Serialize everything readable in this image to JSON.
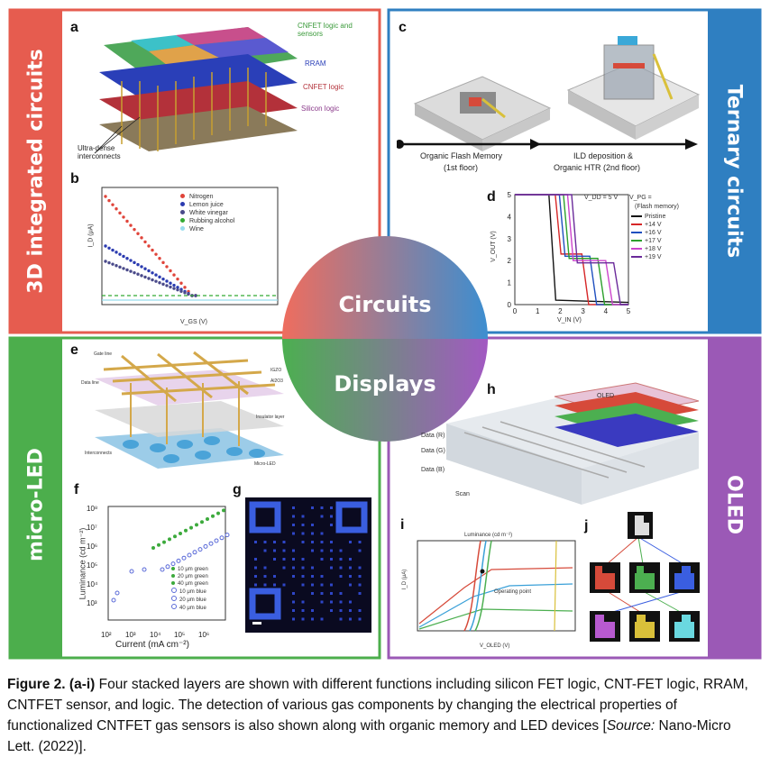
{
  "quadrants": {
    "top_left": {
      "band": "3D integrated circuits",
      "color": "#e65c4f"
    },
    "top_right": {
      "band": "Ternary circuits",
      "color": "#2f7fc1"
    },
    "bottom_left": {
      "band": "micro-LED",
      "color": "#4cae4c"
    },
    "bottom_right": {
      "band": "OLED",
      "color": "#9b59b6"
    }
  },
  "center": {
    "top_label": "Circuits",
    "bottom_label": "Displays"
  },
  "panel_a": {
    "letter": "a",
    "layer_labels": [
      "CNFET logic and sensors",
      "RRAM",
      "CNFET logic",
      "Silicon logic"
    ],
    "interconnect_label": "Ultra-dense interconnects"
  },
  "panel_b": {
    "letter": "b",
    "ylabel": "I_D (μA)",
    "xlabel": "V_GS (V)",
    "legend": [
      "Nitrogen",
      "Lemon juice",
      "White vinegar",
      "Rubbing alcohol",
      "Wine"
    ],
    "legend_colors": [
      "#e0443a",
      "#2b3bb0",
      "#4a4a8a",
      "#33aa33",
      "#99ddee"
    ]
  },
  "panel_c": {
    "letter": "c",
    "step1": "Organic Flash Memory",
    "step1b": "(1st floor)",
    "step2": "ILD deposition &",
    "step2b": "Organic HTR (2nd floor)"
  },
  "panel_d": {
    "letter": "d",
    "ylabel": "V_OUT (V)",
    "xlabel": "V_IN (V)",
    "annotation": "V_DD = 5 V",
    "legend_title": "V_PG =",
    "legend_sub": "(Flash memory)",
    "legend": [
      "Pristine",
      "+14 V",
      "+16 V",
      "+17 V",
      "+18 V",
      "+19 V"
    ],
    "legend_colors": [
      "#111111",
      "#d62728",
      "#1f4fbf",
      "#2ca02c",
      "#cc44cc",
      "#6a2a9a"
    ],
    "xticks": [
      "0",
      "1",
      "2",
      "3",
      "4",
      "5"
    ],
    "yticks": [
      "0",
      "1",
      "2",
      "3",
      "4",
      "5"
    ]
  },
  "panel_e": {
    "letter": "e",
    "labels": [
      "Gate line",
      "Data line",
      "Interconnects",
      "Micro-LED",
      "Insulator layer",
      "Al2O3",
      "IGZO"
    ]
  },
  "panel_f": {
    "letter": "f",
    "ylabel": "Luminance (cd m⁻²)",
    "xlabel": "Current (mA cm⁻²)",
    "legend": [
      "10 μm green",
      "20 μm green",
      "40 μm green",
      "10 μm blue",
      "20 μm blue",
      "40 μm blue"
    ],
    "yticks": [
      "10⁸",
      "10⁷",
      "10⁶",
      "10⁵",
      "10⁴",
      "10³"
    ],
    "xticks": [
      "10²",
      "10³",
      "10⁴",
      "10⁵",
      "10⁶"
    ]
  },
  "panel_g": {
    "letter": "g"
  },
  "panel_h": {
    "letter": "h",
    "device": "OLED",
    "data_labels": [
      "Data (R)",
      "Data (G)",
      "Data (B)"
    ],
    "scan": "Scan"
  },
  "panel_i": {
    "letter": "i",
    "top_axis": "Luminance (cd m⁻²)",
    "annotation": "Operating point",
    "xlabel": "V_OLED (V)",
    "ylabel": "I_D (μA)"
  },
  "panel_j": {
    "letter": "j"
  },
  "caption": {
    "label": "Figure 2.",
    "range": "(a-i)",
    "text1": " Four stacked layers are shown with different functions including silicon FET logic, CNT-FET logic, RRAM, CNTFET sensor, and logic. The detection of various gas components by changing the electrical properties of functionalized CNTFET gas sensors is also shown along with organic memory and LED devices [",
    "source_label": "Source:",
    "source_text": " Nano-Micro Lett. (2022)]."
  }
}
